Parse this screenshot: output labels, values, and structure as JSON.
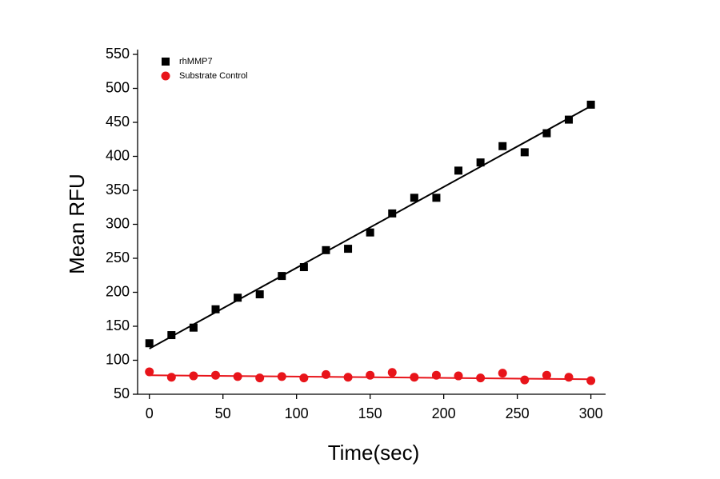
{
  "chart_data": {
    "type": "scatter",
    "x_label": "Time(sec)",
    "y_label": "Mean RFU",
    "xlim": [
      -8,
      310
    ],
    "ylim": [
      50,
      550
    ],
    "xticks": [
      0,
      50,
      100,
      150,
      200,
      250,
      300
    ],
    "yticks": [
      50,
      100,
      150,
      200,
      250,
      300,
      350,
      400,
      450,
      500,
      550
    ],
    "legend": "upper-left",
    "x": [
      0,
      15,
      30,
      45,
      60,
      75,
      90,
      105,
      120,
      135,
      150,
      165,
      180,
      195,
      210,
      225,
      240,
      255,
      270,
      285,
      300
    ],
    "series": [
      {
        "name": "rhMMP7",
        "color": "#000000",
        "marker": "square",
        "values": [
          125,
          137,
          148,
          175,
          192,
          197,
          224,
          237,
          262,
          264,
          288,
          316,
          339,
          339,
          379,
          391,
          415,
          406,
          434,
          454,
          476
        ],
        "fit": {
          "x": [
            0,
            300
          ],
          "y": [
            117,
            474
          ]
        }
      },
      {
        "name": "Substrate Control",
        "color": "#e8141a",
        "marker": "circle",
        "values": [
          83,
          75,
          77,
          78,
          76,
          74,
          76,
          74,
          79,
          75,
          78,
          82,
          75,
          78,
          77,
          74,
          81,
          71,
          78,
          75,
          70
        ],
        "fit": {
          "x": [
            0,
            300
          ],
          "y": [
            78,
            72
          ]
        }
      }
    ]
  }
}
